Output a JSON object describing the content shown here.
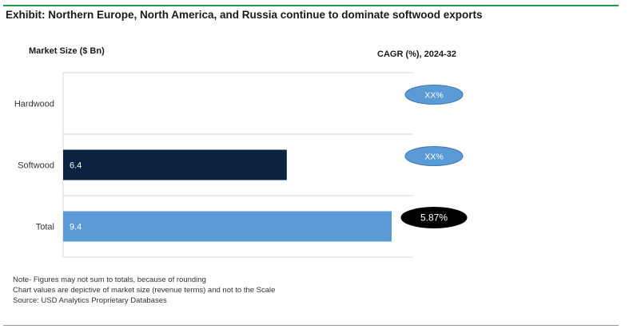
{
  "header": {
    "title": "Exhibit: Northern Europe, North America, and Russia continue to dominate softwood exports"
  },
  "chart_data": {
    "type": "bar",
    "orientation": "horizontal",
    "ylabel": "Market Size ($ Bn)",
    "cagr_label": "CAGR (%), 2024-32",
    "categories": [
      "Hardwood",
      "Softwood",
      "Total"
    ],
    "values": [
      null,
      6.4,
      9.4
    ],
    "value_labels": [
      "",
      "6.4",
      "9.4"
    ],
    "cagr": [
      "XX%",
      "XX%",
      "5.87%"
    ],
    "colors": [
      "#5b9bd5",
      "#0b2340",
      "#5b9bd5"
    ],
    "cagr_colors": [
      "#5b9bd5",
      "#5b9bd5",
      "#000000"
    ],
    "grid": true,
    "legend": "none"
  },
  "notes": [
    "Note- Figures may not sum to totals, because of rounding",
    "Chart values are depictive of market size (revenue terms) and not to the Scale",
    "Source: USD Analytics Proprietary Databases"
  ]
}
